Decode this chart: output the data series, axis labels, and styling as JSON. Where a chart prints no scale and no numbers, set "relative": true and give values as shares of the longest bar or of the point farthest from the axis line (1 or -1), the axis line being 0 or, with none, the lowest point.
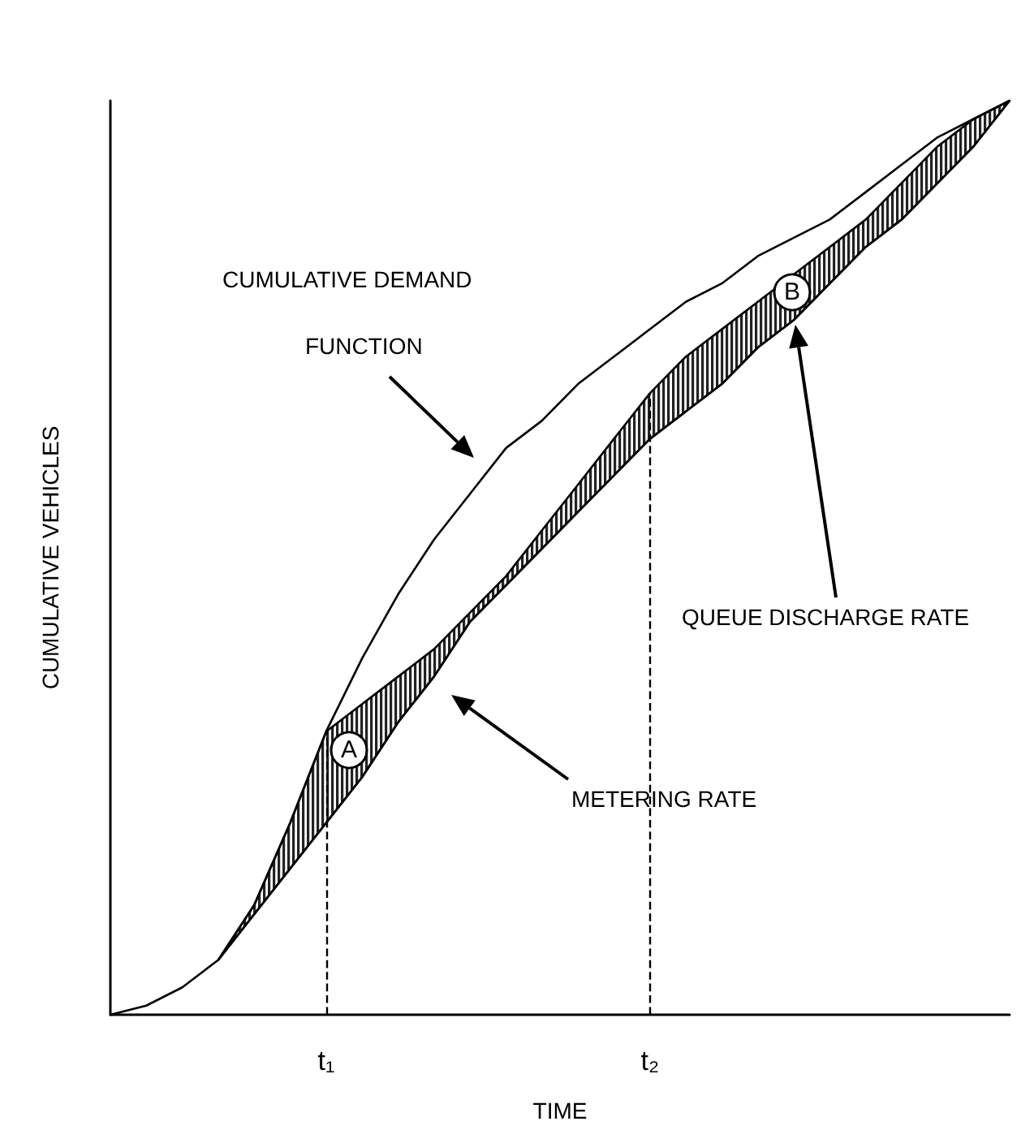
{
  "chart_data": {
    "type": "line",
    "relative": true,
    "xlabel": "TIME",
    "ylabel": "CUMULATIVE VEHICLES",
    "categories": [
      null,
      null,
      null,
      null,
      null,
      null,
      "t₁",
      null,
      null,
      null,
      null,
      null,
      null,
      null,
      null,
      "t₂",
      null,
      null,
      null,
      null,
      null,
      null,
      null,
      null,
      null,
      null
    ],
    "series": [
      {
        "color": "#000000",
        "values": [
          0,
          0.01,
          0.03,
          0.06,
          0.12,
          0.21,
          0.31,
          0.39,
          0.46,
          0.52,
          0.57,
          0.62,
          0.65,
          0.69,
          0.72,
          0.75,
          0.78,
          0.8,
          0.83,
          0.85,
          0.87,
          0.9,
          0.93,
          0.96,
          0.98,
          1
        ]
      },
      {
        "color": "#000000",
        "values": [
          null,
          null,
          null,
          0.06,
          0.11,
          0.16,
          0.21,
          0.26,
          0.32,
          0.37,
          0.43,
          0.47,
          0.51,
          0.55,
          0.59,
          0.63,
          0.66,
          0.69,
          0.73,
          0.76,
          0.8,
          0.84,
          0.87,
          0.91,
          0.95,
          1
        ],
        "lower": [
          null,
          null,
          null,
          0.06,
          0.11,
          0.16,
          0.21,
          0.26,
          0.32,
          0.37,
          0.43,
          0.47,
          0.51,
          0.55,
          0.59,
          0.63,
          0.66,
          0.69,
          0.73,
          0.76,
          0.8,
          0.84,
          0.87,
          0.91,
          0.95,
          1
        ],
        "upper": [
          null,
          null,
          null,
          0.06,
          0.12,
          0.21,
          0.31,
          0.34,
          0.37,
          0.4,
          0.44,
          0.48,
          0.53,
          0.58,
          0.63,
          0.68,
          0.72,
          0.75,
          0.78,
          0.81,
          0.84,
          0.87,
          0.91,
          0.95,
          0.98,
          1
        ]
      }
    ],
    "ref_lines": [
      {
        "axis": "x",
        "value": "t₁",
        "line_style": "dashed"
      },
      {
        "axis": "x",
        "value": "t₂",
        "line_style": "dashed"
      }
    ],
    "annotations": [
      "CUMULATIVE DEMAND",
      "FUNCTION",
      "METERING RATE",
      "QUEUE DISCHARGE RATE",
      "A",
      "B"
    ],
    "grid": false,
    "marker": "none",
    "line_style": "solid"
  }
}
